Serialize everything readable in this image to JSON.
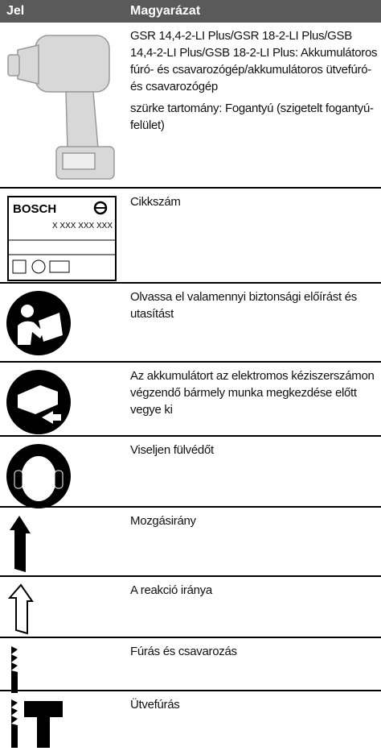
{
  "header": {
    "symbol": "Jel",
    "meaning": "Magyarázat"
  },
  "rows": [
    {
      "text": [
        "GSR 14,4-2-LI Plus/GSR 18-2-LI Plus/GSB 14,4-2-LI Plus/GSB 18-2-LI Plus: Akkumulátoros fúró- és csavarozógép/akkumulátoros ütvefúró- és csavarozógép",
        "szürke tartomány: Fogantyú (szigetelt fogantyú-felület)"
      ]
    },
    {
      "label": {
        "brand": "BOSCH",
        "number": "X XXX XXX XXX"
      },
      "text": [
        "Cikkszám"
      ]
    },
    {
      "text": [
        "Olvassa el valamennyi biztonsági előírást és utasítást"
      ]
    },
    {
      "text": [
        "Az akkumulátort az elektromos kéziszerszámon végzendő bármely munka megkezdése előtt vegye ki"
      ]
    },
    {
      "text": [
        "Viseljen fülvédőt"
      ]
    },
    {
      "text": [
        "Mozgásirány"
      ]
    },
    {
      "text": [
        "A reakció iránya"
      ]
    },
    {
      "text": [
        "Fúrás és csavarozás"
      ]
    },
    {
      "text": [
        "Ütvefúrás"
      ]
    }
  ]
}
